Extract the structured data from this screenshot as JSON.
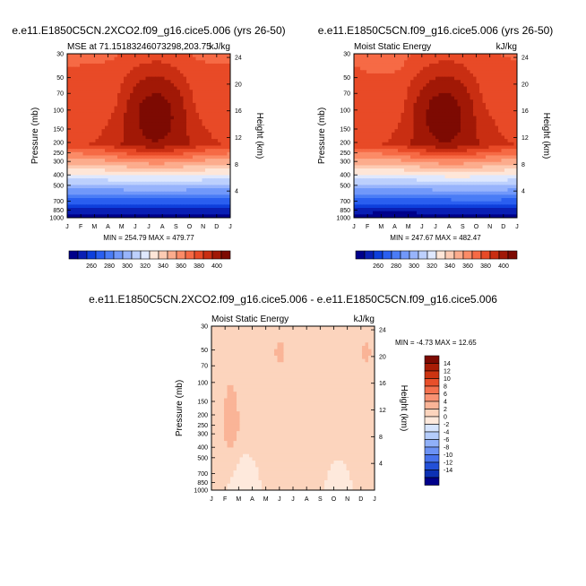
{
  "charts": [
    {
      "title": "e.e11.E1850C5CN.2XCO2.f09_g16.cice5.006 (yrs 26-50)",
      "left_label": "MSE at 71.15183246073298,203.75",
      "units": "kJ/kg",
      "min_max": "MIN = 254.79 MAX = 479.77"
    },
    {
      "title": "e.e11.E1850C5CN.f09_g16.cice5.006 (yrs 26-50)",
      "left_label": "Moist Static Energy",
      "units": "kJ/kg",
      "min_max": "MIN = 247.67 MAX = 482.47"
    },
    {
      "title": "e.e11.E1850C5CN.2XCO2.f09_g16.cice5.006 - e.e11.E1850C5CN.f09_g16.cice5.006",
      "left_label": "Moist Static Energy",
      "units": "kJ/kg",
      "min_max": "MIN =  -4.73 MAX =  12.65"
    }
  ],
  "axis": {
    "ylabel": "Pressure (mb)",
    "ylabel_right": "Height (km)",
    "pressure_ticks": [
      "30",
      "50",
      "70",
      "100",
      "150",
      "200",
      "250",
      "300",
      "400",
      "500",
      "700",
      "850",
      "1000"
    ],
    "height_ticks": [
      "24",
      "20",
      "16",
      "12",
      "8",
      "4"
    ],
    "months": [
      "J",
      "F",
      "M",
      "A",
      "M",
      "J",
      "J",
      "A",
      "S",
      "O",
      "N",
      "D",
      "J"
    ]
  },
  "colorbar_abs": {
    "labels": [
      "260",
      "280",
      "300",
      "320",
      "340",
      "360",
      "380",
      "400"
    ],
    "colors": [
      "#00008a",
      "#0a1fb4",
      "#0e3fdc",
      "#2a5ff0",
      "#4a7cf6",
      "#7198fa",
      "#98b4fc",
      "#bdd0fd",
      "#dfe8fe",
      "#fee6d8",
      "#fdcbb3",
      "#fcac8d",
      "#fb8b67",
      "#f66a45",
      "#e84a27",
      "#c92e12",
      "#a11806",
      "#7d0a02"
    ]
  },
  "colorbar_diff": {
    "labels": [
      "14",
      "12",
      "10",
      "8",
      "6",
      "4",
      "2",
      "0",
      "-2",
      "-4",
      "-6",
      "-8",
      "-10",
      "-12",
      "-14"
    ],
    "colors": [
      "#7d0a02",
      "#a81c06",
      "#cc3412",
      "#e84f2a",
      "#f4714e",
      "#f89273",
      "#fab497",
      "#fcd4bd",
      "#fee9dc",
      "#d6e4fd",
      "#b4ccfb",
      "#90b0f8",
      "#6c92f4",
      "#4772ec",
      "#2350d8",
      "#0c31b4",
      "#00008a"
    ]
  },
  "chart_data": [
    {
      "type": "heatmap",
      "title": "e.e11.E1850C5CN.2XCO2.f09_g16.cice5.006 (yrs 26-50)",
      "xlabel": "",
      "ylabel": "Pressure (mb)",
      "x": [
        "J",
        "F",
        "M",
        "A",
        "M",
        "J",
        "J",
        "A",
        "S",
        "O",
        "N",
        "D",
        "J"
      ],
      "y_pressure_mb": [
        30,
        50,
        70,
        100,
        150,
        200,
        250,
        300,
        400,
        500,
        700,
        850,
        1000
      ],
      "contour_levels": [
        260,
        280,
        300,
        320,
        340,
        360,
        380,
        400
      ],
      "value_range": [
        254.79,
        479.77
      ]
    },
    {
      "type": "heatmap",
      "title": "e.e11.E1850C5CN.f09_g16.cice5.006 (yrs 26-50)",
      "xlabel": "",
      "ylabel": "Pressure (mb)",
      "x": [
        "J",
        "F",
        "M",
        "A",
        "M",
        "J",
        "J",
        "A",
        "S",
        "O",
        "N",
        "D",
        "J"
      ],
      "y_pressure_mb": [
        30,
        50,
        70,
        100,
        150,
        200,
        250,
        300,
        400,
        500,
        700,
        850,
        1000
      ],
      "contour_levels": [
        260,
        280,
        300,
        320,
        340,
        360,
        380,
        400
      ],
      "value_range": [
        247.67,
        482.47
      ]
    },
    {
      "type": "heatmap",
      "title": "e.e11.E1850C5CN.2XCO2.f09_g16.cice5.006 - e.e11.E1850C5CN.f09_g16.cice5.006",
      "xlabel": "",
      "ylabel": "Pressure (mb)",
      "x": [
        "J",
        "F",
        "M",
        "A",
        "M",
        "J",
        "J",
        "A",
        "S",
        "O",
        "N",
        "D",
        "J"
      ],
      "y_pressure_mb": [
        30,
        50,
        70,
        100,
        150,
        200,
        250,
        300,
        400,
        500,
        700,
        850,
        1000
      ],
      "contour_levels": [
        -14,
        -12,
        -10,
        -8,
        -6,
        -4,
        -2,
        0,
        2,
        4,
        6,
        8,
        10,
        12,
        14
      ],
      "value_range": [
        -4.73,
        12.65
      ]
    }
  ]
}
